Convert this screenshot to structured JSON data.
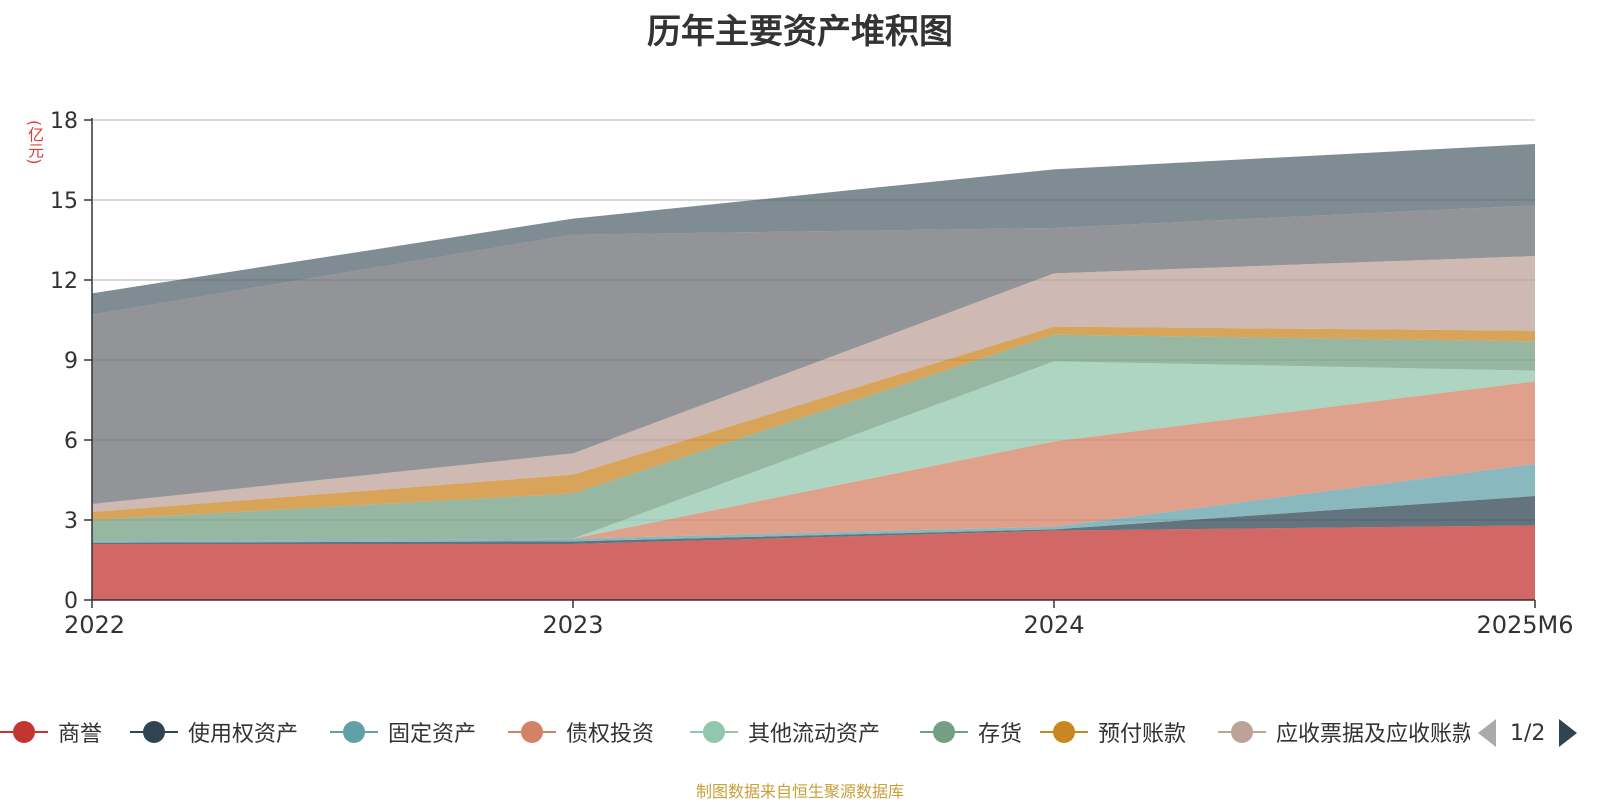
{
  "chart_data": {
    "type": "area",
    "title": "历年主要资产堆积图",
    "ylabel": "(亿元)",
    "categories": [
      "2022",
      "2023",
      "2024",
      "2025M6"
    ],
    "ylim": [
      0,
      18
    ],
    "yticks": [
      0,
      3,
      6,
      9,
      12,
      15,
      18
    ],
    "grid": true,
    "stacked": true,
    "series": [
      {
        "name": "商誉",
        "color": "#c23531",
        "values": [
          2.1,
          2.1,
          2.6,
          2.8
        ]
      },
      {
        "name": "使用权资产",
        "color": "#2f4554",
        "values": [
          0.05,
          0.1,
          0.05,
          1.1
        ]
      },
      {
        "name": "固定资产",
        "color": "#61a0a8",
        "values": [
          0.05,
          0.1,
          0.1,
          1.2
        ]
      },
      {
        "name": "债权投资",
        "color": "#d48265",
        "values": [
          0.0,
          0.0,
          3.2,
          3.1
        ]
      },
      {
        "name": "其他流动资产",
        "color": "#91c7ae",
        "values": [
          0.0,
          0.0,
          3.0,
          0.4
        ]
      },
      {
        "name": "存货",
        "color": "#749f83",
        "values": [
          0.8,
          1.7,
          1.0,
          1.1
        ]
      },
      {
        "name": "预付账款",
        "color": "#ca8622",
        "values": [
          0.3,
          0.7,
          0.3,
          0.4
        ]
      },
      {
        "name": "应收票据及应收账款",
        "color": "#bda29a",
        "values": [
          0.3,
          0.8,
          2.0,
          2.8
        ]
      },
      {
        "name": "",
        "color": "#6e7074",
        "values": [
          7.1,
          8.2,
          1.7,
          1.9
        ]
      },
      {
        "name": "",
        "color": "#546570",
        "values": [
          0.8,
          0.6,
          2.2,
          2.3
        ]
      }
    ]
  },
  "legend": {
    "items": [
      "商誉",
      "使用权资产",
      "固定资产",
      "债权投资",
      "其他流动资产",
      "存货",
      "预付账款",
      "应收票据及应收账款"
    ],
    "colors": [
      "#c23531",
      "#2f4554",
      "#61a0a8",
      "#d48265",
      "#91c7ae",
      "#749f83",
      "#ca8622",
      "#bda29a"
    ],
    "page_label": "1/2"
  },
  "footer": {
    "source": "制图数据来自恒生聚源数据库"
  }
}
